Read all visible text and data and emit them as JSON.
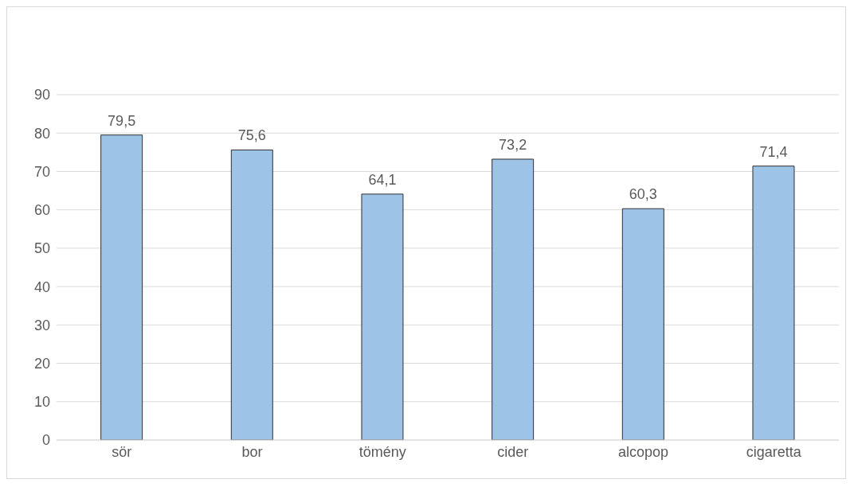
{
  "chart_data": {
    "type": "bar",
    "categories": [
      "sör",
      "bor",
      "tömény",
      "cider",
      "alcopop",
      "cigaretta"
    ],
    "values": [
      79.5,
      75.6,
      64.1,
      73.2,
      60.3,
      71.4
    ],
    "value_labels": [
      "79,5",
      "75,6",
      "64,1",
      "73,2",
      "60,3",
      "71,4"
    ],
    "color": "#9dc3e6",
    "ylim": [
      0,
      90
    ],
    "yticks": [
      0,
      10,
      20,
      30,
      40,
      50,
      60,
      70,
      80,
      90
    ],
    "grid": "y",
    "legend": false
  }
}
